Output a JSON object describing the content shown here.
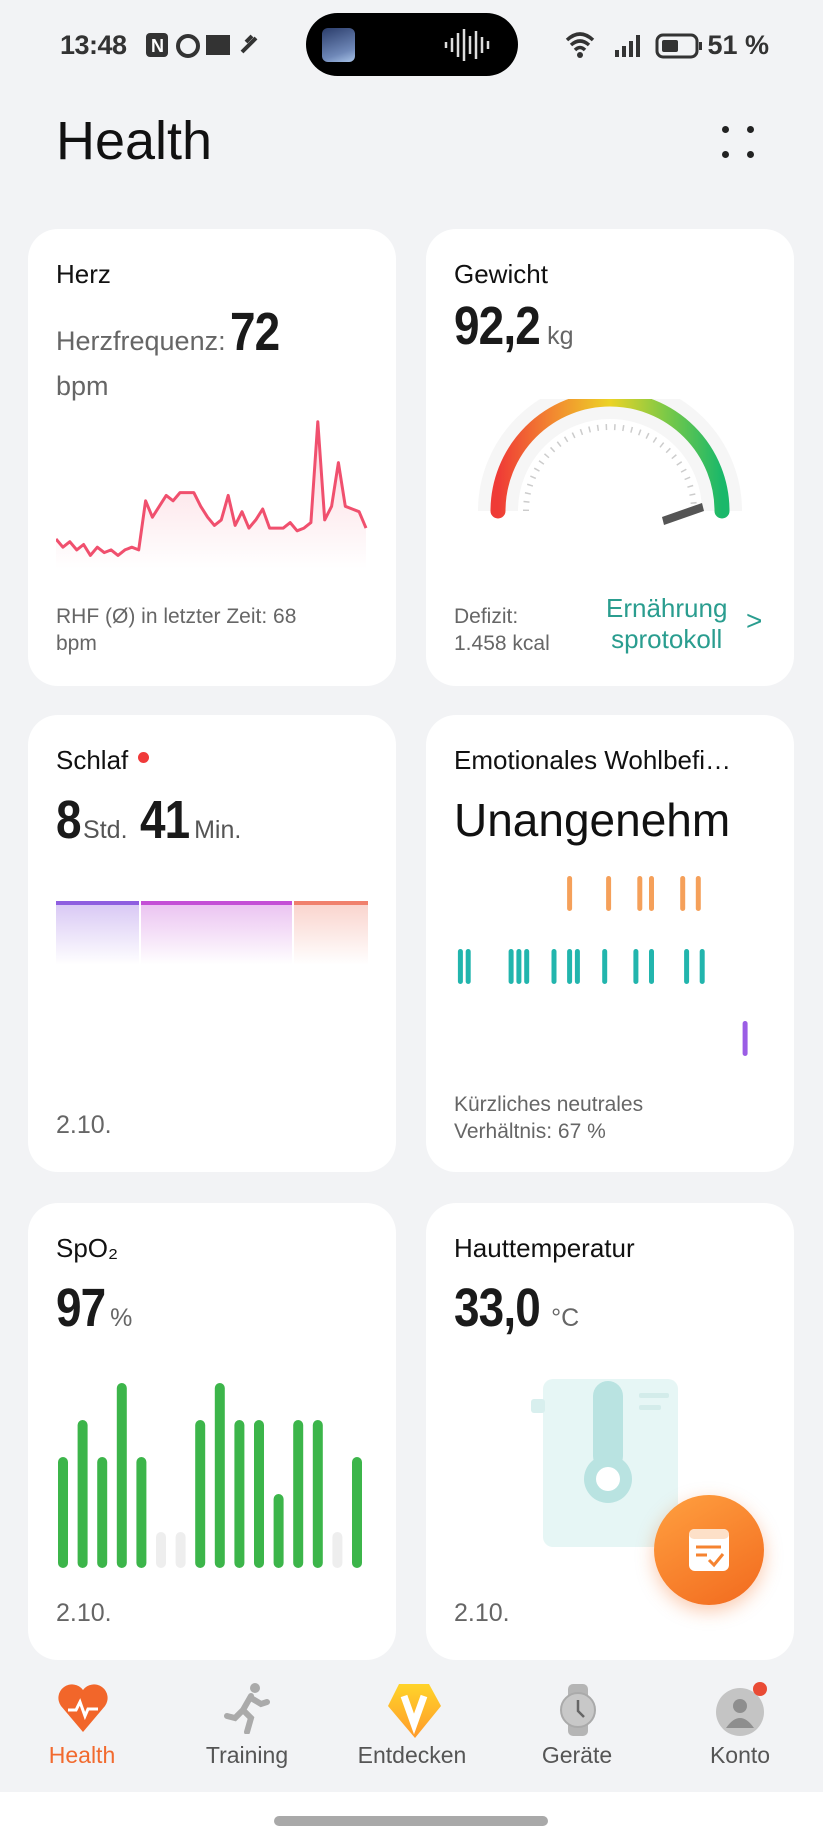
{
  "status_bar": {
    "time": "13:48",
    "battery": "51 %",
    "icons": [
      "nfc-icon",
      "alarm-icon",
      "outlook-icon",
      "health-sync-icon",
      "wifi-icon",
      "signal-icon",
      "battery-icon"
    ]
  },
  "header": {
    "title": "Health",
    "menu_icon": "more-icon"
  },
  "cards": {
    "heart": {
      "title": "Herz",
      "label": "Herzfrequenz:",
      "value": "72",
      "unit": "bpm",
      "footer": "RHF (Ø) in letzter Zeit: 68",
      "footer_unit": "bpm",
      "color": "#f0506e",
      "series": [
        66,
        63,
        65,
        62,
        64,
        60,
        63,
        61,
        62,
        60,
        62,
        63,
        62,
        80,
        74,
        78,
        82,
        80,
        83,
        83,
        83,
        78,
        74,
        71,
        73,
        82,
        71,
        76,
        70,
        73,
        77,
        70,
        70,
        70,
        72,
        69,
        70,
        72,
        109,
        73,
        78,
        94,
        78,
        77,
        76,
        70
      ]
    },
    "weight": {
      "title": "Gewicht",
      "value": "92,2",
      "unit": "kg",
      "deficit_label": "Defizit:",
      "deficit_value": "1.458 kcal",
      "link": "Ernährung sprotokoll",
      "link_line1": "Ernährung",
      "link_line2": "sprotokoll",
      "link_color": "#2a9d8f",
      "gauge_fraction": 0.97
    },
    "sleep": {
      "title": "Schlaf",
      "hours": "8",
      "hours_unit": "Std.",
      "minutes": "41",
      "minutes_unit": "Min.",
      "date": "2.10.",
      "segments": [
        {
          "share": 0.27,
          "color": "#8e5ee0"
        },
        {
          "share": 0.49,
          "color": "#c44fd6"
        },
        {
          "share": 0.24,
          "color": "#f0806c"
        }
      ]
    },
    "emotion": {
      "title": "Emotionales Wohlbefi…",
      "value": "Unangenehm",
      "footer1": "Kürzliches neutrales",
      "footer2": "Verhältnis: 67 %",
      "rows": [
        {
          "mood": "unpleasant",
          "color": "#f5a05a",
          "time_index": [
            29,
            39,
            47,
            50,
            58,
            62
          ]
        },
        {
          "mood": "neutral",
          "color": "#22b5ad",
          "time_index": [
            1,
            3,
            14,
            16,
            18,
            25,
            29,
            31,
            38,
            46,
            50,
            59,
            63
          ]
        },
        {
          "mood": "pleasant",
          "color": "#9b5de5",
          "time_index": [
            74
          ]
        }
      ]
    },
    "spo2": {
      "title": "SpO₂",
      "value": "97",
      "unit": "%",
      "date": "2.10.",
      "color": "#3cb54a",
      "values": [
        96,
        97,
        96,
        98,
        96,
        null,
        null,
        97,
        98,
        97,
        97,
        95,
        97,
        97,
        null,
        96
      ]
    },
    "skin": {
      "title": "Hauttemperatur",
      "value": "33,0",
      "unit": "°C",
      "date": "2.10."
    }
  },
  "fab": {
    "icon": "record-icon"
  },
  "nav": [
    {
      "label": "Health",
      "icon": "heart-icon",
      "active": true
    },
    {
      "label": "Training",
      "icon": "running-icon"
    },
    {
      "label": "Entdecken",
      "icon": "discover-icon"
    },
    {
      "label": "Geräte",
      "icon": "watch-icon"
    },
    {
      "label": "Konto",
      "icon": "account-icon"
    }
  ],
  "accent": "#f26a2e"
}
